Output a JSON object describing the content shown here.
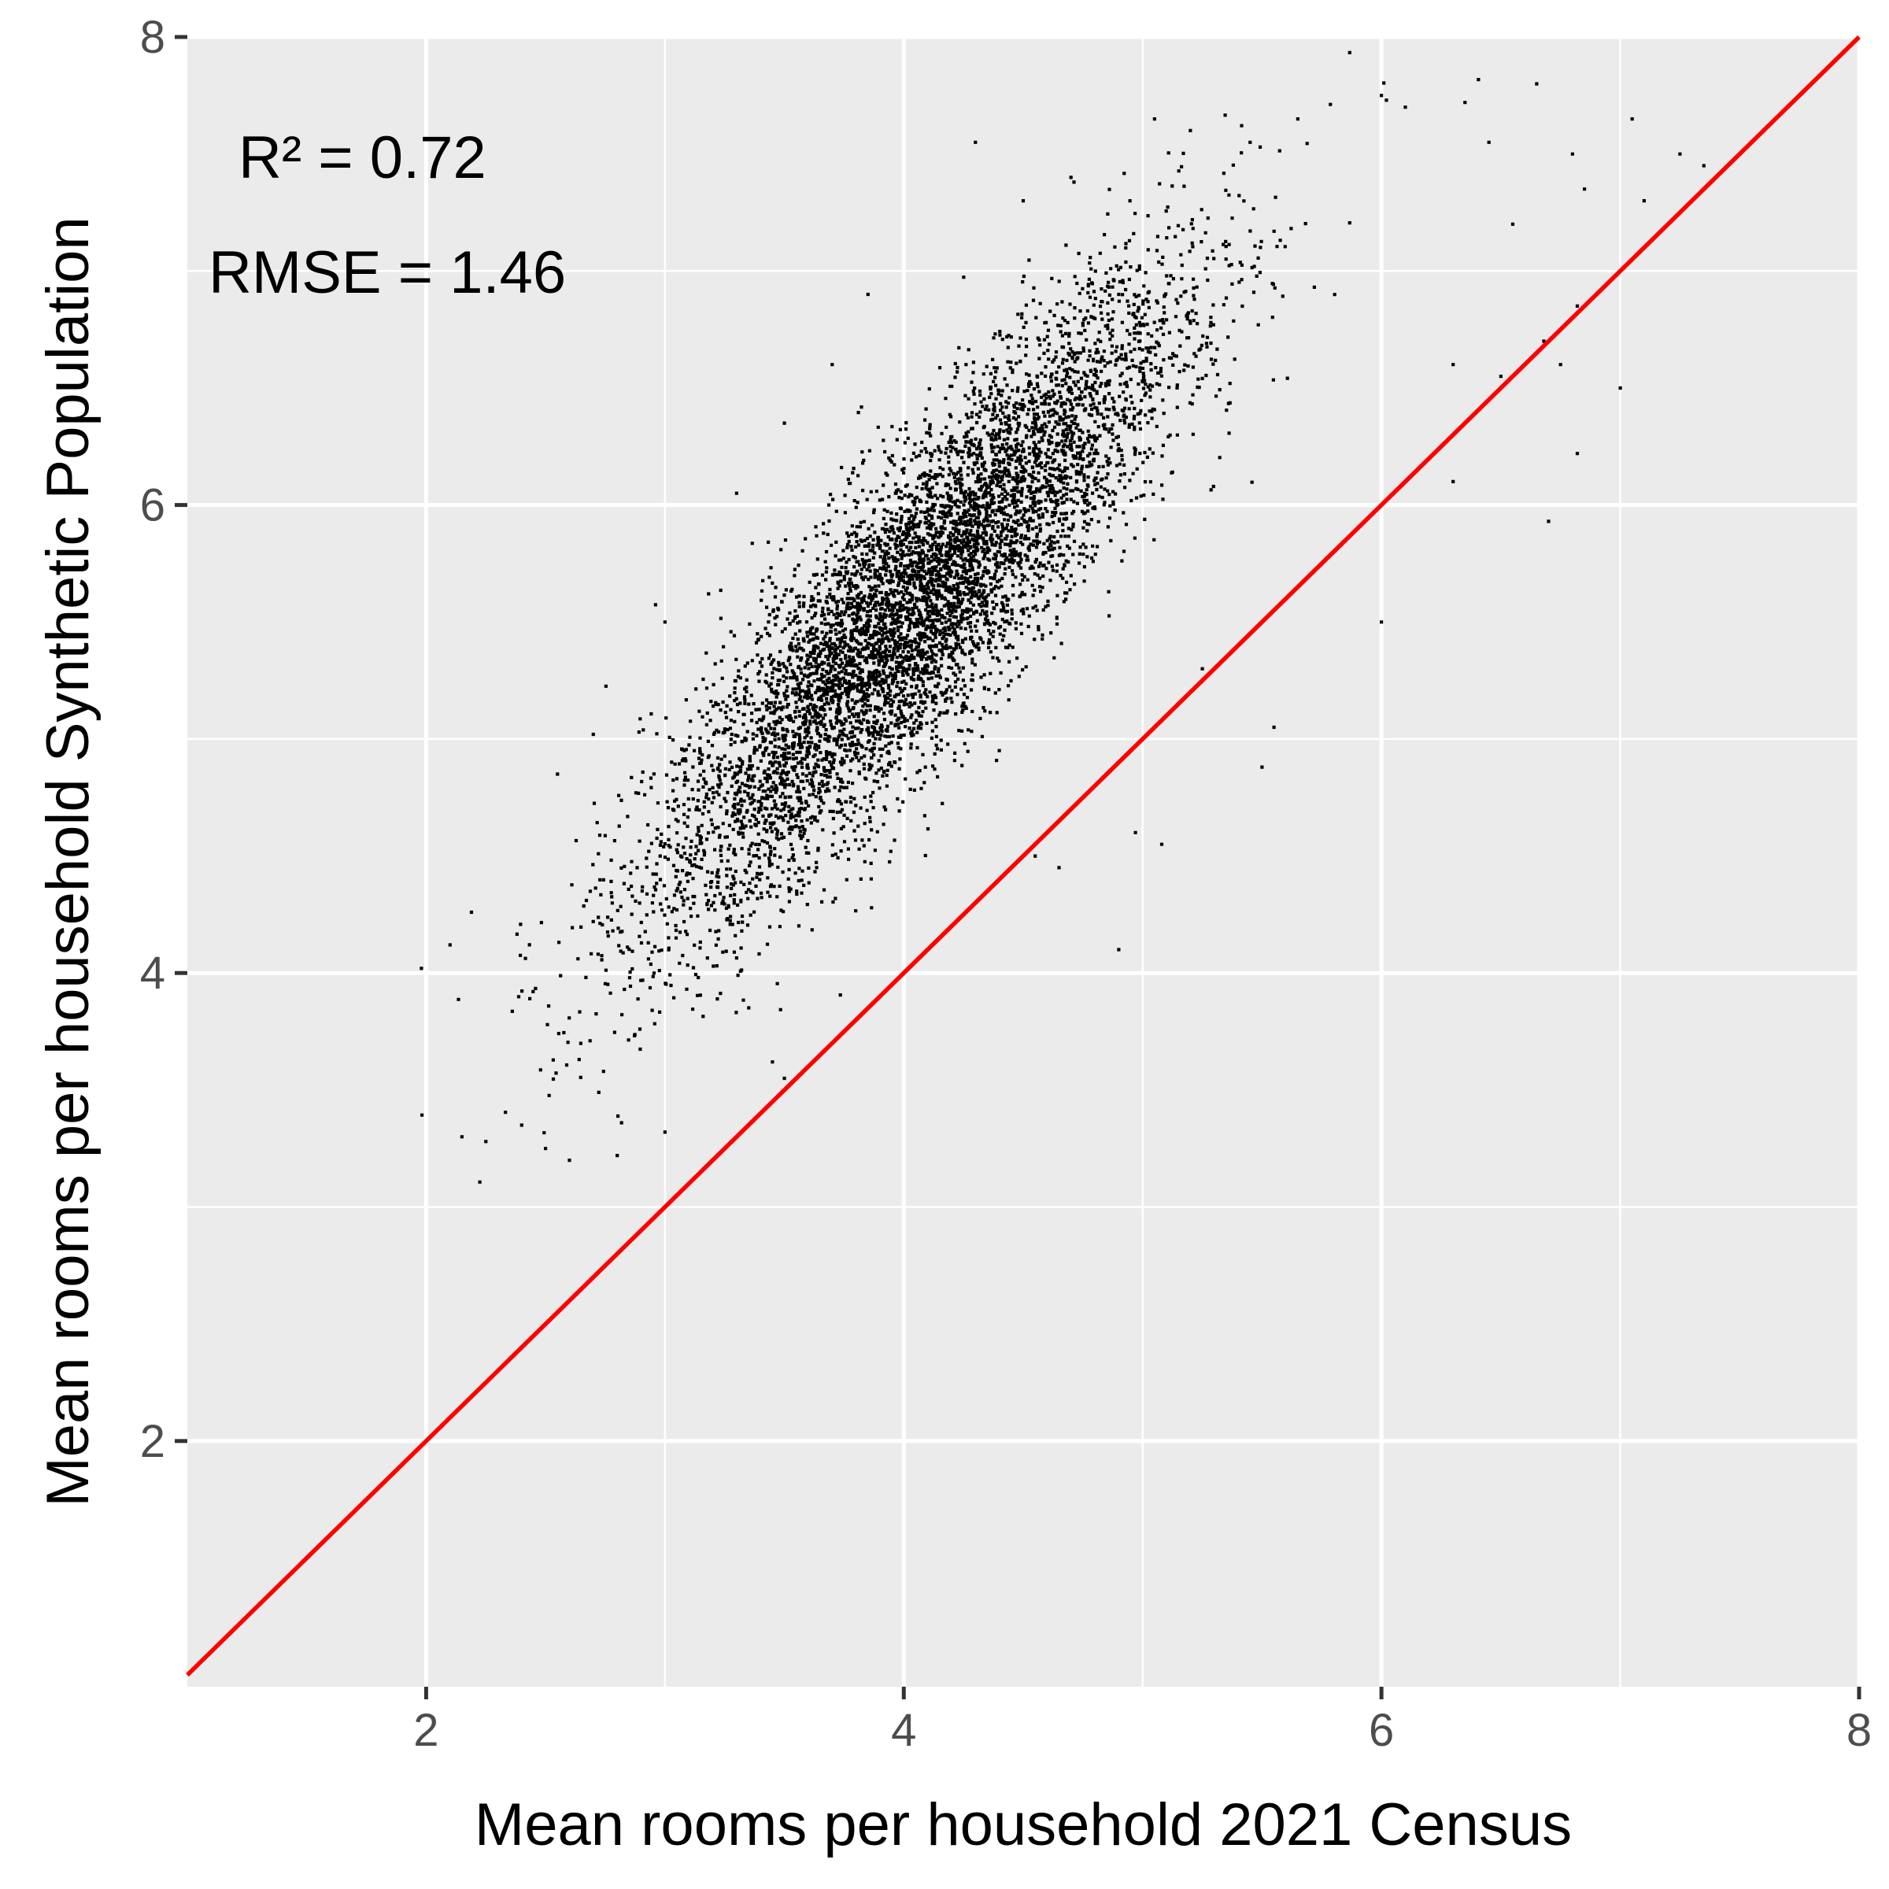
{
  "chart_data": {
    "type": "scatter",
    "title": "",
    "xlabel": "Mean rooms per household 2021 Census",
    "ylabel": "Mean rooms per household Synthetic Population",
    "xlim": [
      1.0,
      8.0
    ],
    "ylim": [
      0.95,
      8.0
    ],
    "x_ticks": [
      2,
      4,
      6,
      8
    ],
    "y_ticks": [
      2,
      4,
      6,
      8
    ],
    "grid": true,
    "legend": "none",
    "annotations": [
      {
        "text": "R² = 0.72",
        "x": 1.5,
        "y": 7.5
      },
      {
        "text": "RMSE = 1.46",
        "x": 1.2,
        "y": 7.0
      }
    ],
    "reference_line": {
      "slope": 1,
      "intercept": 0,
      "color": "#ff0000"
    },
    "colors": {
      "panel": "#ebebeb",
      "grid": "#ffffff",
      "points": "#000000",
      "line": "#ff0000"
    },
    "series": [
      {
        "points": [
          [
            1.98,
            4.02
          ],
          [
            2.1,
            4.12
          ],
          [
            2.15,
            3.3
          ],
          [
            2.25,
            3.28
          ],
          [
            2.4,
            3.35
          ],
          [
            2.5,
            3.25
          ],
          [
            2.6,
            3.2
          ],
          [
            2.8,
            3.22
          ],
          [
            3.0,
            3.32
          ],
          [
            2.55,
            4.85
          ],
          [
            2.7,
            5.02
          ],
          [
            3.3,
            6.05
          ],
          [
            3.5,
            6.35
          ],
          [
            3.7,
            6.6
          ],
          [
            3.85,
            6.9
          ],
          [
            4.3,
            7.55
          ],
          [
            4.5,
            7.3
          ],
          [
            4.7,
            7.4
          ],
          [
            4.9,
            6.9
          ],
          [
            5.05,
            7.65
          ],
          [
            5.2,
            7.6
          ],
          [
            5.45,
            7.55
          ],
          [
            5.65,
            7.65
          ],
          [
            6.0,
            7.75
          ],
          [
            6.1,
            7.7
          ],
          [
            6.35,
            7.72
          ],
          [
            6.45,
            7.55
          ],
          [
            6.65,
            7.8
          ],
          [
            6.8,
            7.5
          ],
          [
            6.85,
            7.35
          ],
          [
            7.05,
            7.65
          ],
          [
            7.25,
            7.5
          ],
          [
            7.35,
            7.45
          ],
          [
            7.1,
            7.3
          ],
          [
            6.55,
            7.2
          ],
          [
            6.3,
            6.6
          ],
          [
            6.5,
            6.55
          ],
          [
            6.68,
            6.7
          ],
          [
            6.82,
            6.85
          ],
          [
            6.75,
            6.6
          ],
          [
            7.0,
            6.5
          ],
          [
            6.82,
            6.22
          ],
          [
            6.7,
            5.93
          ],
          [
            6.3,
            6.1
          ],
          [
            6.0,
            5.5
          ],
          [
            5.55,
            5.05
          ],
          [
            5.5,
            4.88
          ],
          [
            5.25,
            5.3
          ],
          [
            4.97,
            4.6
          ],
          [
            5.08,
            4.55
          ],
          [
            4.9,
            4.1
          ],
          [
            4.65,
            4.45
          ],
          [
            4.55,
            4.5
          ],
          [
            3.95,
            3.95
          ],
          [
            3.5,
            3.55
          ],
          [
            3.45,
            3.62
          ],
          [
            2.98,
            4.5
          ],
          [
            3.0,
            5.5
          ]
        ]
      }
    ]
  }
}
